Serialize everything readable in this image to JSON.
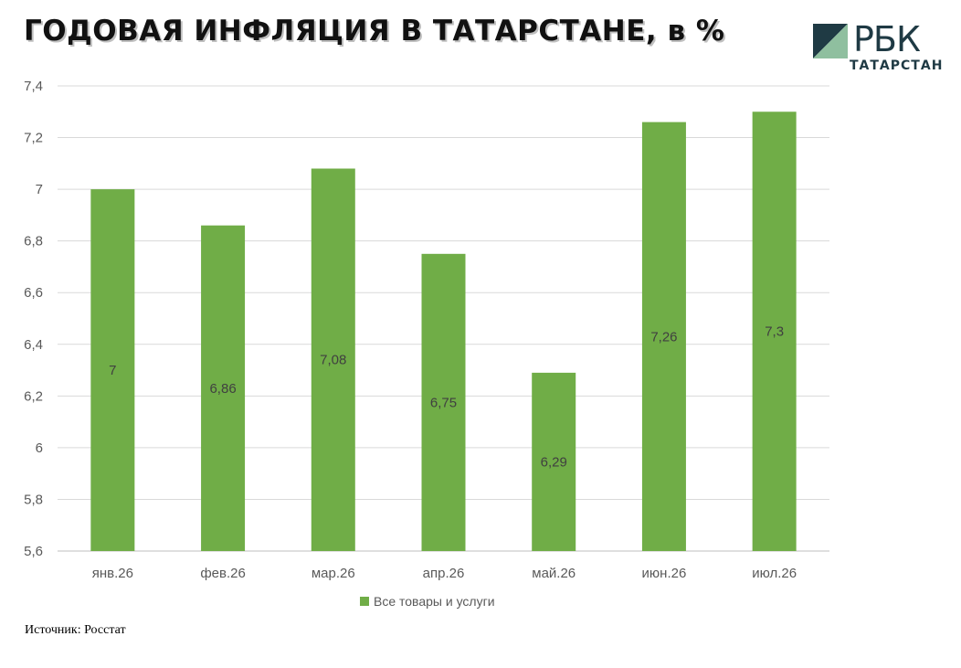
{
  "header": {
    "title": "ГОДОВАЯ ИНФЛЯЦИЯ В ТАТАРСТАНЕ, в %"
  },
  "logo": {
    "name": "РБК",
    "subtitle": "ТАТАРСТАН",
    "mark_colors": [
      "#1f3a44",
      "#8fbf9f"
    ]
  },
  "source": {
    "text": "Источник: Росстат"
  },
  "colors": {
    "bar": "#70ad47",
    "grid": "#d9d9d9",
    "axis": "#bfbfbf"
  },
  "chart_data": {
    "type": "bar",
    "title": "ГОДОВАЯ ИНФЛЯЦИЯ В ТАТАРСТАНЕ, в %",
    "categories": [
      "янв.26",
      "фев.26",
      "мар.26",
      "апр.26",
      "май.26",
      "июн.26",
      "июл.26"
    ],
    "series": [
      {
        "name": "Все товары и услуги",
        "values": [
          7,
          6.86,
          7.08,
          6.75,
          6.29,
          7.26,
          7.3
        ],
        "labels": [
          "7",
          "6,86",
          "7,08",
          "6,75",
          "6,29",
          "7,26",
          "7,3"
        ]
      }
    ],
    "ylim": [
      5.6,
      7.4
    ],
    "yticks": [
      5.6,
      5.8,
      6,
      6.2,
      6.4,
      6.6,
      6.8,
      7,
      7.2,
      7.4
    ],
    "ytick_labels": [
      "5,6",
      "5,8",
      "6",
      "6,2",
      "6,4",
      "6,6",
      "6,8",
      "7",
      "7,2",
      "7,4"
    ],
    "grid": true,
    "legend_position": "bottom"
  }
}
